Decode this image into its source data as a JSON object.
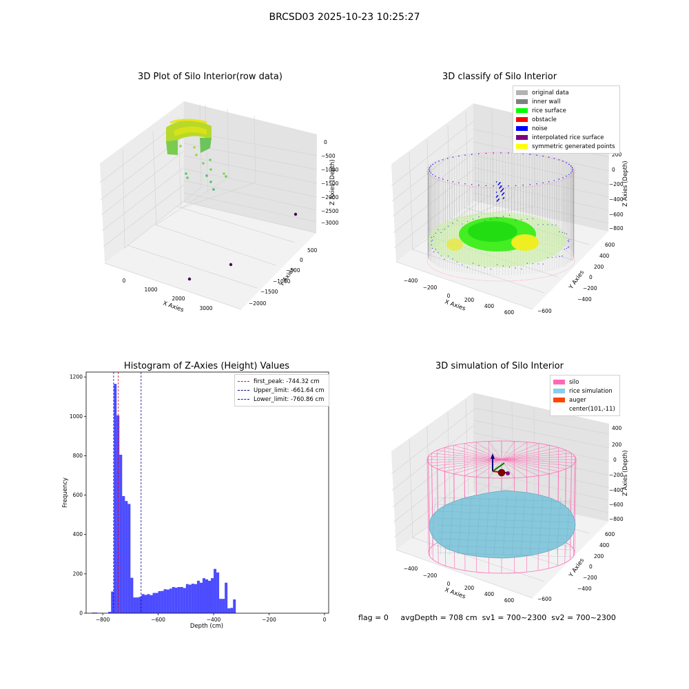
{
  "figure": {
    "suptitle": "BRCSD03 2025-10-23 10:25:27",
    "status": {
      "flag": "flag = 0",
      "avg": "avgDepth = 708 cm",
      "sv1": "sv1 = 700~2300",
      "sv2": "sv2 = 700~2300"
    }
  },
  "chart_data": [
    {
      "type": "scatter",
      "subtype": "3d",
      "title": "3D Plot of Silo Interior(row data)",
      "xlabel": "X Axies",
      "ylabel": "Y Axies",
      "zlabel": "Z Axies (Depth)",
      "x_ticks": [
        "0",
        "1000",
        "2000",
        "3000"
      ],
      "y_ticks": [
        "500",
        "0",
        "−500",
        "−1000",
        "−1500",
        "−2000"
      ],
      "z_ticks": [
        "0",
        "−500",
        "−1000",
        "−1500",
        "−2000",
        "−2500",
        "−3000"
      ],
      "colormap": "viridis",
      "outlier_points": [
        {
          "x": 1550,
          "y": -2100,
          "z": -3500
        },
        {
          "x": 3500,
          "y": -1500,
          "z": -3450
        },
        {
          "x": 3900,
          "y": 150,
          "z": -2900
        }
      ],
      "grid": true
    },
    {
      "type": "scatter",
      "subtype": "3d",
      "title": "3D classify of Silo Interior",
      "xlabel": "X Axies",
      "ylabel": "Y Axies",
      "zlabel": "Z Axies (Depth)",
      "x_ticks": [
        "−400",
        "−200",
        "0",
        "200",
        "400",
        "600"
      ],
      "y_ticks": [
        "600",
        "400",
        "200",
        "0",
        "−200",
        "−400",
        "−600"
      ],
      "z_ticks": [
        "200",
        "0",
        "−200",
        "−400",
        "−600",
        "−800"
      ],
      "z_tick_partial": "00",
      "legend_location": "upper right",
      "legend": [
        {
          "label": "original data",
          "color": "#b3b3b3"
        },
        {
          "label": "inner wall",
          "color": "#808080"
        },
        {
          "label": "rice surface",
          "color": "#00ff00"
        },
        {
          "label": "obstacle",
          "color": "#ff0000"
        },
        {
          "label": "noise",
          "color": "#0000ff"
        },
        {
          "label": "interpolated rice surface",
          "color": "#800080"
        },
        {
          "label": "symmetric generated points",
          "color": "#ffff00"
        }
      ],
      "grid": true
    },
    {
      "type": "bar",
      "subtype": "histogram",
      "title": "Histogram of Z-Axies (Height) Values",
      "xlabel": "Depth (cm)",
      "ylabel": "Frequency",
      "xlim": [
        -860,
        15
      ],
      "ylim": [
        0,
        1225
      ],
      "x_ticks": [
        -800,
        -600,
        -400,
        -200,
        0
      ],
      "y_ticks": [
        0,
        200,
        400,
        600,
        800,
        1000,
        1200
      ],
      "bar_color": "#0000ff",
      "bar_alpha": 0.7,
      "bins": [
        {
          "start": -840,
          "end": -820,
          "value": 3
        },
        {
          "start": -820,
          "end": -800,
          "value": 1
        },
        {
          "start": -800,
          "end": -780,
          "value": 0
        },
        {
          "start": -780,
          "end": -770,
          "value": 7
        },
        {
          "start": -770,
          "end": -760,
          "value": 110
        },
        {
          "start": -760,
          "end": -750,
          "value": 1165
        },
        {
          "start": -750,
          "end": -740,
          "value": 1005
        },
        {
          "start": -740,
          "end": -730,
          "value": 805
        },
        {
          "start": -730,
          "end": -720,
          "value": 595
        },
        {
          "start": -720,
          "end": -710,
          "value": 570
        },
        {
          "start": -710,
          "end": -700,
          "value": 555
        },
        {
          "start": -700,
          "end": -690,
          "value": 180
        },
        {
          "start": -690,
          "end": -680,
          "value": 80
        },
        {
          "start": -680,
          "end": -670,
          "value": 80
        },
        {
          "start": -670,
          "end": -660,
          "value": 83
        },
        {
          "start": -660,
          "end": -650,
          "value": 97
        },
        {
          "start": -650,
          "end": -640,
          "value": 93
        },
        {
          "start": -640,
          "end": -630,
          "value": 97
        },
        {
          "start": -630,
          "end": -620,
          "value": 92
        },
        {
          "start": -620,
          "end": -610,
          "value": 103
        },
        {
          "start": -610,
          "end": -600,
          "value": 103
        },
        {
          "start": -600,
          "end": -590,
          "value": 112
        },
        {
          "start": -590,
          "end": -580,
          "value": 113
        },
        {
          "start": -580,
          "end": -570,
          "value": 122
        },
        {
          "start": -570,
          "end": -560,
          "value": 120
        },
        {
          "start": -560,
          "end": -550,
          "value": 125
        },
        {
          "start": -550,
          "end": -540,
          "value": 133
        },
        {
          "start": -540,
          "end": -530,
          "value": 130
        },
        {
          "start": -530,
          "end": -520,
          "value": 133
        },
        {
          "start": -520,
          "end": -510,
          "value": 133
        },
        {
          "start": -510,
          "end": -500,
          "value": 128
        },
        {
          "start": -500,
          "end": -490,
          "value": 148
        },
        {
          "start": -490,
          "end": -480,
          "value": 145
        },
        {
          "start": -480,
          "end": -470,
          "value": 150
        },
        {
          "start": -470,
          "end": -460,
          "value": 148
        },
        {
          "start": -460,
          "end": -450,
          "value": 165
        },
        {
          "start": -450,
          "end": -440,
          "value": 155
        },
        {
          "start": -440,
          "end": -430,
          "value": 178
        },
        {
          "start": -430,
          "end": -420,
          "value": 172
        },
        {
          "start": -420,
          "end": -410,
          "value": 165
        },
        {
          "start": -410,
          "end": -400,
          "value": 178
        },
        {
          "start": -400,
          "end": -390,
          "value": 225
        },
        {
          "start": -390,
          "end": -380,
          "value": 207
        },
        {
          "start": -380,
          "end": -370,
          "value": 73
        },
        {
          "start": -370,
          "end": -360,
          "value": 73
        },
        {
          "start": -360,
          "end": -350,
          "value": 155
        },
        {
          "start": -350,
          "end": -340,
          "value": 25
        },
        {
          "start": -340,
          "end": -330,
          "value": 27
        },
        {
          "start": -330,
          "end": -320,
          "value": 70
        }
      ],
      "vlines": [
        {
          "label": "first_peak: -744.32 cm",
          "x": -744.32,
          "color": "#ff0000"
        },
        {
          "label": "Upper_limit: -661.64 cm",
          "x": -661.64,
          "color": "#00008b"
        },
        {
          "label": "Lower_limit: -760.86 cm",
          "x": -760.86,
          "color": "#0000ff"
        }
      ],
      "legend_location": "upper right",
      "grid": false
    },
    {
      "type": "scatter",
      "subtype": "3d",
      "title": "3D simulation of Silo Interior",
      "xlabel": "X Axies",
      "ylabel": "Y Axies",
      "zlabel": "Z Axies (Depth)",
      "x_ticks": [
        "−400",
        "−200",
        "0",
        "200",
        "400",
        "600"
      ],
      "y_ticks": [
        "600",
        "400",
        "200",
        "0",
        "−200",
        "−400",
        "−600"
      ],
      "z_ticks": [
        "400",
        "200",
        "0",
        "−200",
        "−400",
        "−600",
        "−800"
      ],
      "legend_location": "upper right",
      "legend": [
        {
          "label": "silo",
          "color": "#ff69b4"
        },
        {
          "label": "rice simulation",
          "color": "#87ceeb"
        },
        {
          "label": "auger",
          "color": "#ff4500"
        },
        {
          "label": "center(101,-11)",
          "color": ""
        }
      ],
      "grid": true
    }
  ]
}
